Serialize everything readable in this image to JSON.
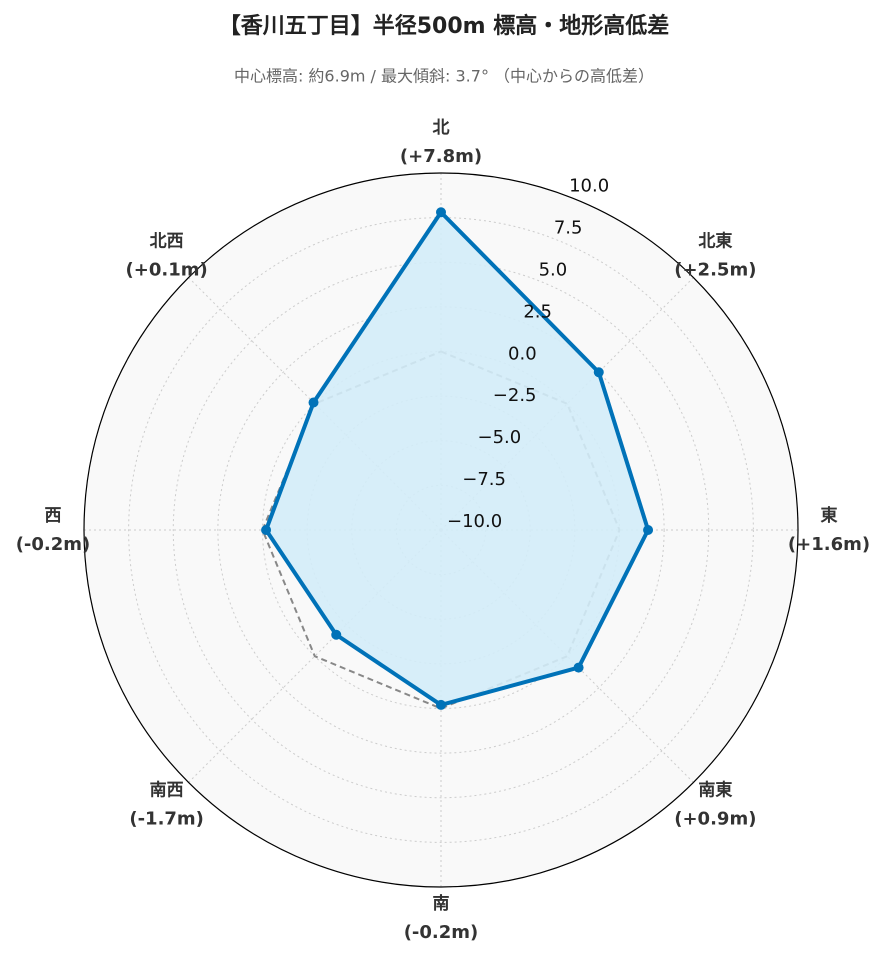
{
  "chart_data": {
    "type": "radar",
    "title": "【香川五丁目】半径500m 標高・地形高低差",
    "subtitle": "中心標高: 約6.9m / 最大傾斜: 3.7° （中心からの高低差）",
    "categories": [
      "北",
      "北東",
      "東",
      "南東",
      "南",
      "南西",
      "西",
      "北西"
    ],
    "values": [
      7.8,
      2.5,
      1.6,
      0.9,
      -0.2,
      -1.7,
      -0.2,
      0.1
    ],
    "value_labels": [
      "(+7.8m)",
      "(+2.5m)",
      "(+1.6m)",
      "(+0.9m)",
      "(-0.2m)",
      "(-1.7m)",
      "(-0.2m)",
      "(+0.1m)"
    ],
    "color": "#0072b8",
    "fill_color": "#d3ecf8",
    "reference_line": {
      "value": 0,
      "color": "#888888"
    },
    "ylim": [
      -10,
      10
    ],
    "yticks": [
      {
        "value": -10,
        "label": "−10.0"
      },
      {
        "value": -7.5,
        "label": "−7.5"
      },
      {
        "value": -5,
        "label": "−5.0"
      },
      {
        "value": -2.5,
        "label": "−2.5"
      },
      {
        "value": 0,
        "label": "0.0"
      },
      {
        "value": 2.5,
        "label": "2.5"
      },
      {
        "value": 5,
        "label": "5.0"
      },
      {
        "value": 7.5,
        "label": "7.5"
      },
      {
        "value": 10,
        "label": "10.0"
      }
    ],
    "grid": true
  }
}
